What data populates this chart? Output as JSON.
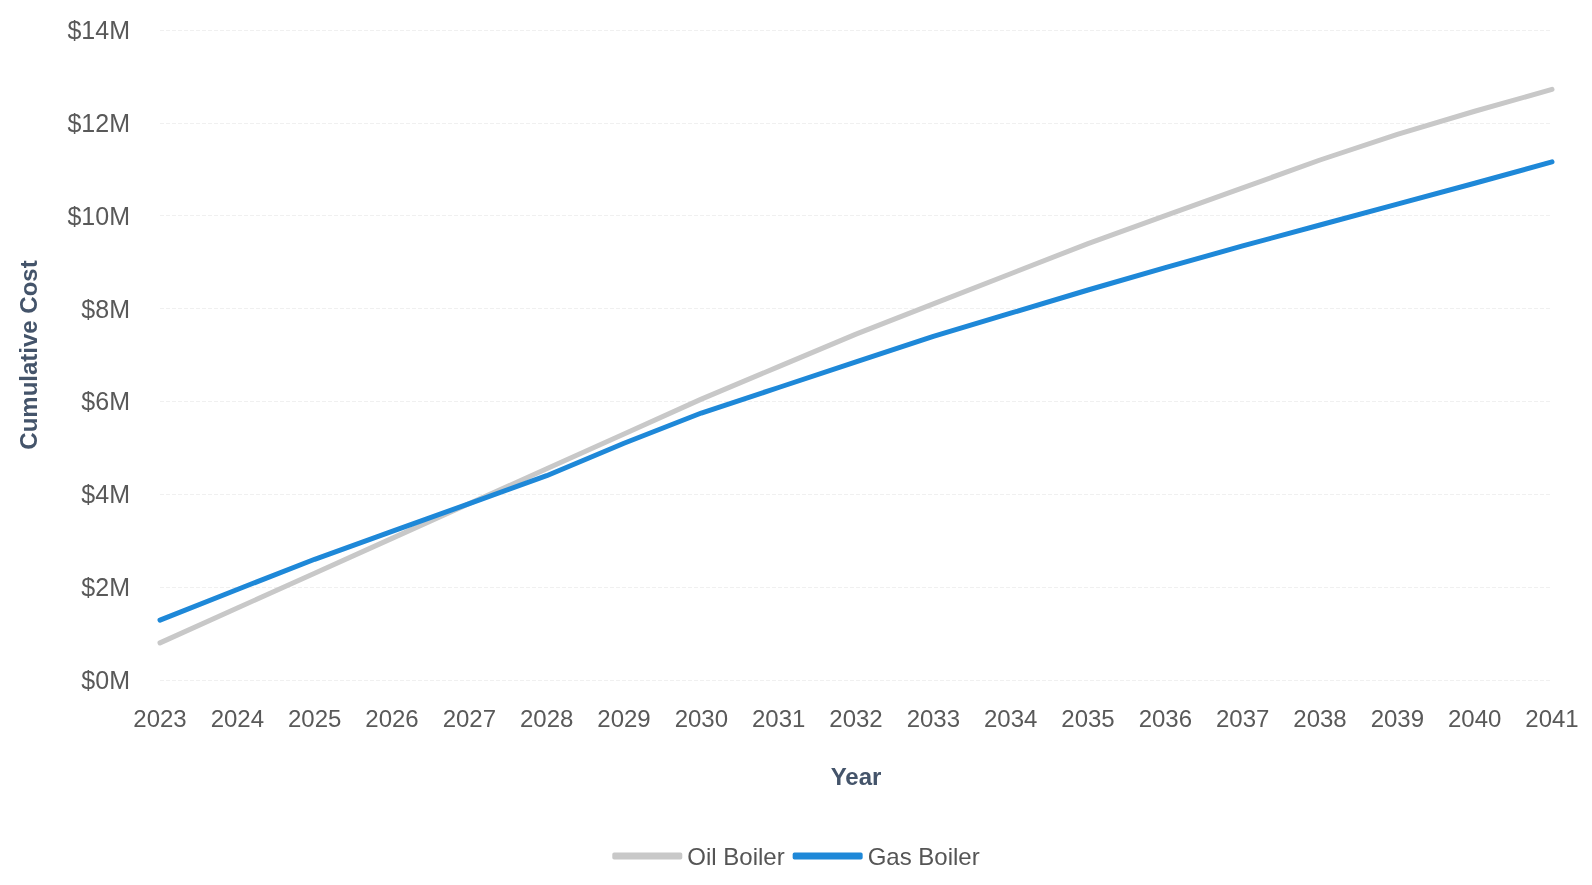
{
  "chart_data": {
    "type": "line",
    "xlabel": "Year",
    "ylabel": "Cumulative Cost",
    "categories": [
      "2023",
      "2024",
      "2025",
      "2026",
      "2027",
      "2028",
      "2029",
      "2030",
      "2031",
      "2032",
      "2033",
      "2034",
      "2035",
      "2036",
      "2037",
      "2038",
      "2039",
      "2040",
      "2041"
    ],
    "series": [
      {
        "name": "Oil Boiler",
        "color": "#c8c8c8",
        "values": [
          0.8,
          1.55,
          2.3,
          3.05,
          3.8,
          4.55,
          5.3,
          6.05,
          6.75,
          7.45,
          8.1,
          8.75,
          9.4,
          10.0,
          10.6,
          11.2,
          11.75,
          12.25,
          12.72
        ]
      },
      {
        "name": "Gas Boiler",
        "color": "#1e88d8",
        "values": [
          1.29,
          1.95,
          2.6,
          3.2,
          3.8,
          4.4,
          5.1,
          5.75,
          6.3,
          6.85,
          7.4,
          7.9,
          8.4,
          8.88,
          9.35,
          9.8,
          10.25,
          10.7,
          11.16
        ]
      }
    ],
    "ylim": [
      0,
      14
    ],
    "yticks": [
      {
        "value": 0,
        "label": "$0M"
      },
      {
        "value": 2,
        "label": "$2M"
      },
      {
        "value": 4,
        "label": "$4M"
      },
      {
        "value": 6,
        "label": "$6M"
      },
      {
        "value": 8,
        "label": "$8M"
      },
      {
        "value": 10,
        "label": "$10M"
      },
      {
        "value": 12,
        "label": "$12M"
      },
      {
        "value": 14,
        "label": "$14M"
      }
    ],
    "grid": "y",
    "legend": "bottom",
    "marker": "none",
    "line_style": "solid"
  }
}
